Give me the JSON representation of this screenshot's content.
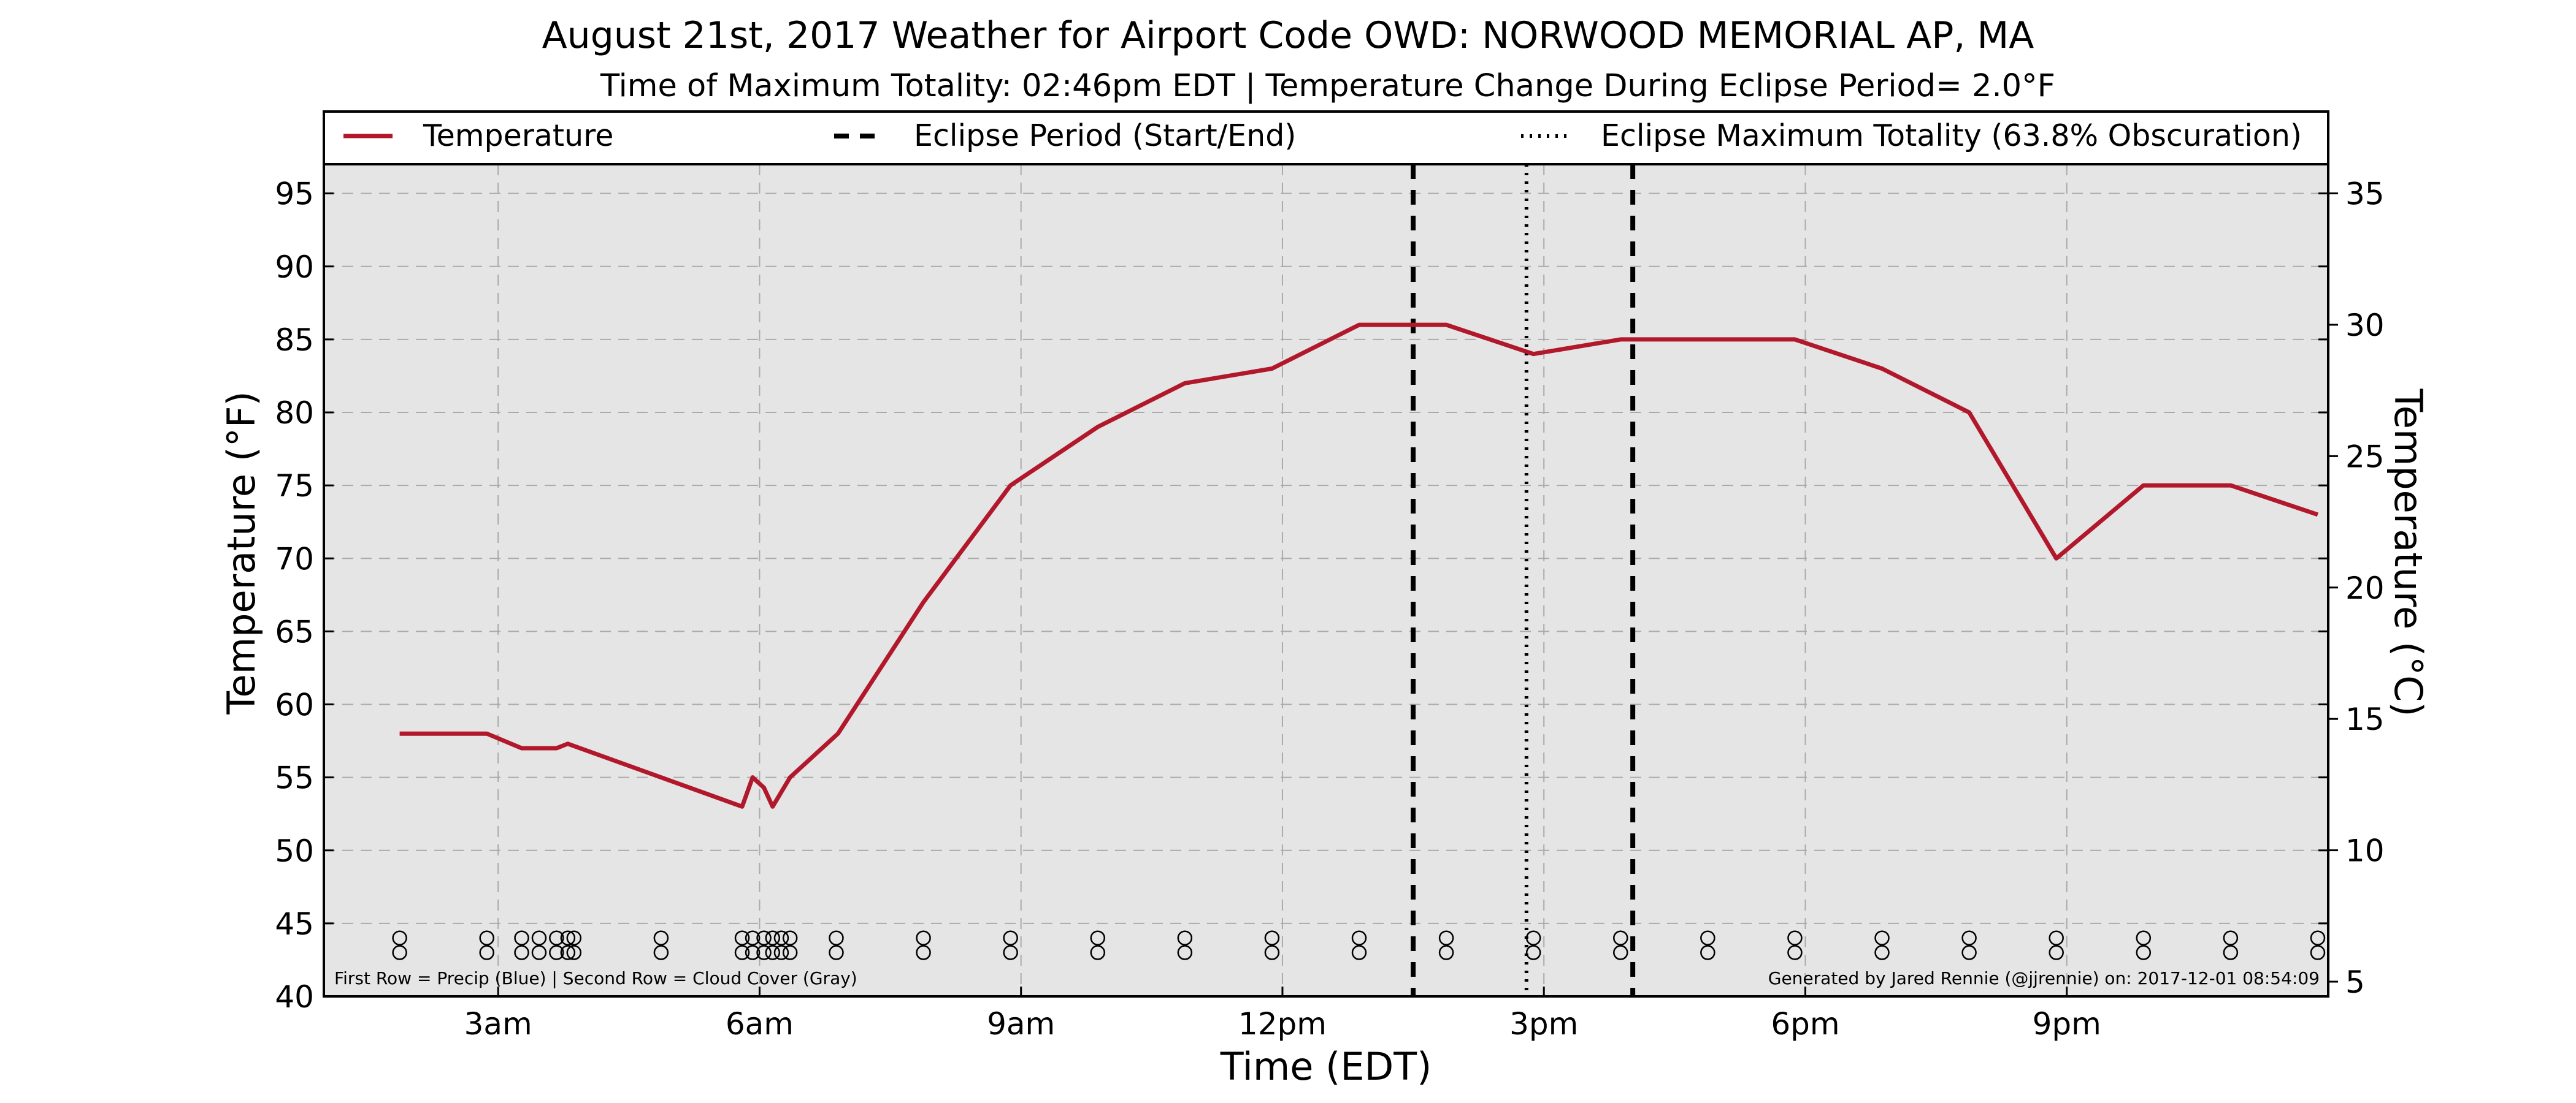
{
  "chart_data": {
    "type": "line",
    "title": "August 21st, 2017 Weather for Airport Code OWD: NORWOOD MEMORIAL AP, MA",
    "subtitle": "Time of Maximum Totality: 02:46pm EDT | Temperature Change During Eclipse Period= 2.0°F",
    "xlabel": "Time (EDT)",
    "ylabel": "Temperature (°F)",
    "ylabel_right": "Temperature (°C)",
    "xlim": [
      1.0,
      24.0
    ],
    "ylim": [
      40,
      97
    ],
    "ylim_right_c": [
      4.44,
      36.11
    ],
    "x_unit": "hours after midnight (EDT)",
    "x_ticks": [
      {
        "x": 3,
        "label": "3am"
      },
      {
        "x": 6,
        "label": "6am"
      },
      {
        "x": 9,
        "label": "9am"
      },
      {
        "x": 12,
        "label": "12pm"
      },
      {
        "x": 15,
        "label": "3pm"
      },
      {
        "x": 18,
        "label": "6pm"
      },
      {
        "x": 21,
        "label": "9pm"
      }
    ],
    "y_ticks": [
      40,
      45,
      50,
      55,
      60,
      65,
      70,
      75,
      80,
      85,
      90,
      95
    ],
    "y_ticks_right": [
      5,
      10,
      15,
      20,
      25,
      30,
      35
    ],
    "grid": true,
    "legend_position": "top",
    "legend": [
      {
        "label": "Temperature",
        "style": "solid",
        "color": "#b2182b"
      },
      {
        "label": "Eclipse Period (Start/End)",
        "style": "dashed",
        "color": "#000000"
      },
      {
        "label": "Eclipse Maximum Totality (63.8% Obscuration)",
        "style": "dotted",
        "color": "#000000"
      }
    ],
    "series": [
      {
        "name": "Temperature",
        "color": "#b2182b",
        "x": [
          1.87,
          2.87,
          3.27,
          3.67,
          3.8,
          5.8,
          5.92,
          6.05,
          6.15,
          6.35,
          6.9,
          7.88,
          8.88,
          9.88,
          10.88,
          11.88,
          12.88,
          13.88,
          14.88,
          15.88,
          16.88,
          17.88,
          18.88,
          19.88,
          20.88,
          21.88,
          22.88,
          23.88
        ],
        "values": [
          58,
          58,
          57,
          57,
          57.3,
          53,
          55,
          54.3,
          53,
          55,
          58,
          67,
          75,
          79,
          82,
          83,
          86,
          86,
          84,
          85,
          85,
          85,
          83,
          80,
          70,
          75,
          75,
          73
        ]
      }
    ],
    "eclipse_lines": [
      {
        "x": 13.5,
        "style": "dashed",
        "meaning": "start"
      },
      {
        "x": 14.8,
        "style": "dotted",
        "meaning": "max totality"
      },
      {
        "x": 16.02,
        "style": "dashed",
        "meaning": "end"
      }
    ],
    "observation_markers_x": [
      1.87,
      2.87,
      3.27,
      3.47,
      3.67,
      3.8,
      3.87,
      4.87,
      5.8,
      5.92,
      6.05,
      6.15,
      6.25,
      6.35,
      6.88,
      7.88,
      8.88,
      9.88,
      10.88,
      11.88,
      12.88,
      13.88,
      14.88,
      15.88,
      16.88,
      17.88,
      18.88,
      19.88,
      20.88,
      21.88,
      22.88,
      23.88
    ],
    "marker_rows_y": [
      44,
      43
    ],
    "annotation_left": "First Row = Precip (Blue) | Second Row = Cloud Cover (Gray)",
    "annotation_right": "Generated by Jared Rennie (@jjrennie) on: 2017-12-01 08:54:09",
    "colors": {
      "plot_bg": "#e5e5e5",
      "temperature": "#b2182b",
      "grid": "#aaaaaa"
    }
  }
}
